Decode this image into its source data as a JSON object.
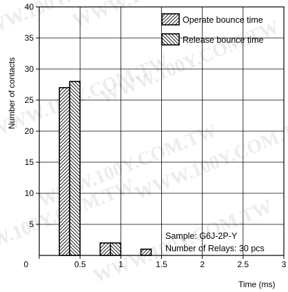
{
  "chart_data": {
    "type": "bar",
    "xlabel": "Time (ms)",
    "ylabel": "Number of contacts",
    "xlim": [
      0,
      3
    ],
    "ylim": [
      0,
      40
    ],
    "x_ticks": [
      "0",
      "0.5",
      "1",
      "1.5",
      "2",
      "2.5",
      "3"
    ],
    "y_ticks": [
      "5",
      "10",
      "15",
      "20",
      "25",
      "30",
      "35",
      "40"
    ],
    "grid": true,
    "legend_position": "top-right",
    "series": [
      {
        "name": "Operate bounce time",
        "pattern": "diagonal-up",
        "x": [
          0.5,
          1.0,
          1.5
        ],
        "values": [
          27,
          2,
          1
        ]
      },
      {
        "name": "Release bounce time",
        "pattern": "diagonal-down",
        "x": [
          0.5,
          1.0,
          1.5
        ],
        "values": [
          28,
          2,
          0
        ]
      }
    ],
    "annotation": [
      "Sample: G6J-2P-Y",
      "Number of Relays: 30 pcs"
    ],
    "watermark": "WWW.100Y.COM.TW"
  }
}
